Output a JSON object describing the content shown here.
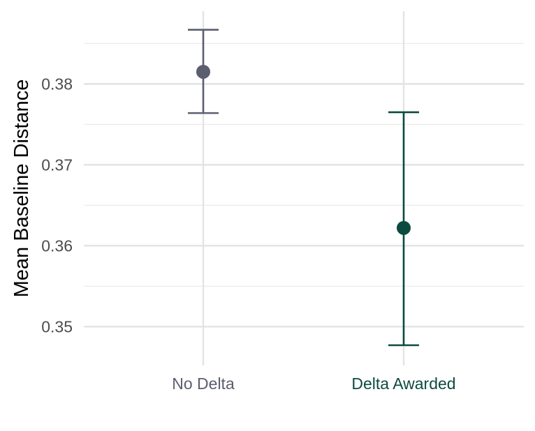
{
  "chart_data": {
    "type": "scatter",
    "title": "",
    "xlabel": "",
    "ylabel": "Mean Baseline Distance",
    "categories": [
      "No Delta",
      "Delta Awarded"
    ],
    "series": [
      {
        "points": [
          {
            "category": "No Delta",
            "mean": 0.3815,
            "lower": 0.3764,
            "upper": 0.3867,
            "color": "#5b5e6f"
          },
          {
            "category": "Delta Awarded",
            "mean": 0.3622,
            "lower": 0.3477,
            "upper": 0.3765,
            "color": "#0b4b3f"
          }
        ]
      }
    ],
    "ylim": [
      0.3452,
      0.389
    ],
    "yticks": [
      0.35,
      0.36,
      0.37,
      0.38
    ],
    "ytick_labels": [
      "0.35",
      "0.36",
      "0.37",
      "0.38"
    ],
    "grid": true,
    "legend": "none"
  }
}
